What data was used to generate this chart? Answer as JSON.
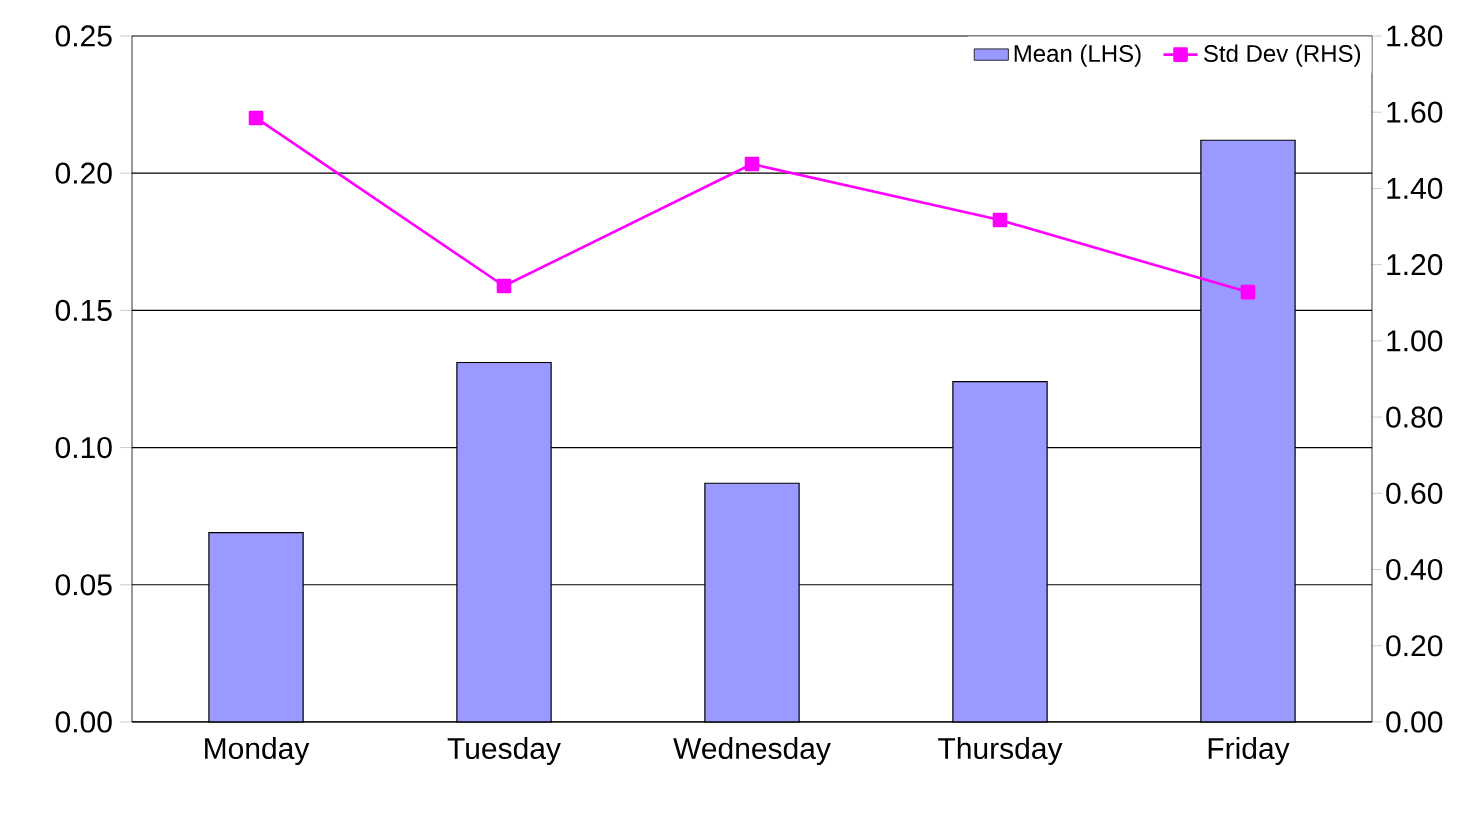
{
  "chart_data": {
    "type": "bar",
    "categories": [
      "Monday",
      "Tuesday",
      "Wednesday",
      "Thursday",
      "Friday"
    ],
    "series": [
      {
        "name": "Mean (LHS)",
        "color": "#9999ff",
        "values": [
          0.069,
          0.131,
          0.087,
          0.124,
          0.212
        ]
      },
      {
        "name": "Std Dev (RHS)",
        "type": "line",
        "axis": "y2",
        "color": "#ff00ff",
        "marker": "square",
        "values": [
          1.585,
          1.144,
          1.464,
          1.317,
          1.128
        ]
      }
    ],
    "ylim": [
      0,
      0.25
    ],
    "yticks": [
      {
        "value": 0,
        "label": "0.00"
      },
      {
        "value": 0.05,
        "label": "0.05"
      },
      {
        "value": 0.1,
        "label": "0.10"
      },
      {
        "value": 0.15,
        "label": "0.15"
      },
      {
        "value": 0.2,
        "label": "0.20"
      },
      {
        "value": 0.25,
        "label": "0.25"
      }
    ],
    "y2lim": [
      0,
      1.8
    ],
    "y2ticks": [
      {
        "value": 0,
        "label": "0.00"
      },
      {
        "value": 0.2,
        "label": "0.20"
      },
      {
        "value": 0.4,
        "label": "0.40"
      },
      {
        "value": 0.6,
        "label": "0.60"
      },
      {
        "value": 0.8,
        "label": "0.80"
      },
      {
        "value": 1.0,
        "label": "1.00"
      },
      {
        "value": 1.2,
        "label": "1.20"
      },
      {
        "value": 1.4,
        "label": "1.40"
      },
      {
        "value": 1.6,
        "label": "1.60"
      },
      {
        "value": 1.8,
        "label": "1.80"
      }
    ],
    "grid": "y",
    "legend": "top right"
  }
}
